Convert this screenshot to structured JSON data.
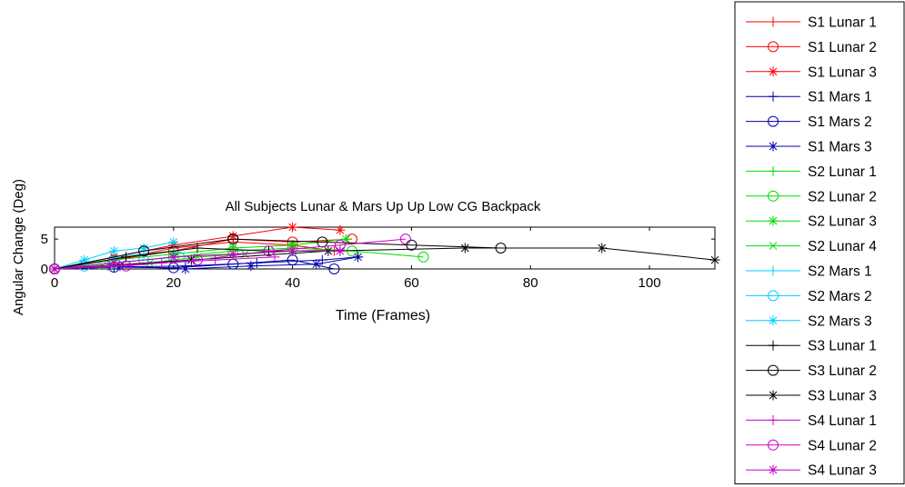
{
  "chart_data": {
    "type": "line",
    "title": "All Subjects Lunar & Mars Up Up Low CG Backpack",
    "xlabel": "Time (Frames)",
    "ylabel": "Angular Change (Deg)",
    "xlim": [
      0,
      111
    ],
    "ylim": [
      0,
      7
    ],
    "xticks": [
      0,
      20,
      40,
      60,
      80,
      100
    ],
    "yticks": [
      0,
      5
    ],
    "grid": false,
    "legend_position": "outside-right",
    "series": [
      {
        "name": "S1 Lunar 1",
        "color": "#ff0000",
        "marker": "plus",
        "x": [
          0,
          10,
          20,
          30,
          40,
          47
        ],
        "y": [
          0,
          1.5,
          3.5,
          4.5,
          4.0,
          3.0
        ]
      },
      {
        "name": "S1 Lunar 2",
        "color": "#ff0000",
        "marker": "circle",
        "x": [
          0,
          10,
          20,
          30,
          40,
          50
        ],
        "y": [
          0,
          1.5,
          3.0,
          5.0,
          4.5,
          5.0
        ]
      },
      {
        "name": "S1 Lunar 3",
        "color": "#ff0000",
        "marker": "star",
        "x": [
          0,
          10,
          20,
          30,
          40,
          48
        ],
        "y": [
          0,
          2.0,
          4.0,
          5.5,
          7.0,
          6.5
        ]
      },
      {
        "name": "S1 Mars 1",
        "color": "#0000aa",
        "marker": "plus",
        "x": [
          0,
          10,
          22,
          34,
          45,
          51
        ],
        "y": [
          0,
          0.3,
          0.5,
          1.0,
          1.5,
          2.0
        ]
      },
      {
        "name": "S1 Mars 2",
        "color": "#0000aa",
        "marker": "circle",
        "x": [
          0,
          10,
          20,
          30,
          40,
          47
        ],
        "y": [
          0,
          0.3,
          0.2,
          0.8,
          1.5,
          0.0
        ]
      },
      {
        "name": "S1 Mars 3",
        "color": "#0000aa",
        "marker": "star",
        "x": [
          0,
          11,
          22,
          33,
          44,
          51
        ],
        "y": [
          0,
          0.5,
          0.0,
          0.5,
          0.8,
          2.0
        ]
      },
      {
        "name": "S2 Lunar 1",
        "color": "#00dd00",
        "marker": "plus",
        "x": [
          0,
          10,
          20,
          30,
          40,
          48
        ],
        "y": [
          0,
          1.0,
          2.0,
          2.5,
          3.0,
          3.2
        ]
      },
      {
        "name": "S2 Lunar 2",
        "color": "#00dd00",
        "marker": "circle",
        "x": [
          0,
          10,
          20,
          30,
          40,
          50,
          62
        ],
        "y": [
          0,
          1.0,
          2.0,
          3.0,
          3.5,
          3.0,
          2.0
        ]
      },
      {
        "name": "S2 Lunar 3",
        "color": "#00dd00",
        "marker": "star",
        "x": [
          0,
          10,
          20,
          30,
          40,
          49
        ],
        "y": [
          0,
          1.5,
          2.5,
          3.5,
          4.0,
          5.0
        ]
      },
      {
        "name": "S2 Lunar 4",
        "color": "#00dd00",
        "marker": "x",
        "x": [
          0,
          8,
          16,
          24,
          32,
          40
        ],
        "y": [
          0,
          0.5,
          1.0,
          2.0,
          2.5,
          3.0
        ]
      },
      {
        "name": "S2 Mars 1",
        "color": "#00ccff",
        "marker": "plus",
        "x": [
          0,
          5,
          10,
          15,
          20
        ],
        "y": [
          0,
          1.0,
          2.0,
          2.5,
          3.0
        ]
      },
      {
        "name": "S2 Mars 2",
        "color": "#00ccff",
        "marker": "circle",
        "x": [
          0,
          5,
          10,
          15,
          21
        ],
        "y": [
          0,
          0.5,
          1.0,
          1.5,
          2.0
        ]
      },
      {
        "name": "S2 Mars 3",
        "color": "#00ccff",
        "marker": "star",
        "x": [
          0,
          5,
          10,
          15,
          20
        ],
        "y": [
          0,
          1.5,
          3.0,
          3.5,
          4.5
        ]
      },
      {
        "name": "S3 Lunar 1",
        "color": "#000000",
        "marker": "plus",
        "x": [
          0,
          12,
          24,
          36,
          48
        ],
        "y": [
          0,
          2.0,
          3.5,
          3.0,
          3.0
        ]
      },
      {
        "name": "S3 Lunar 2",
        "color": "#000000",
        "marker": "circle",
        "x": [
          0,
          15,
          30,
          45,
          60,
          75
        ],
        "y": [
          0,
          3.0,
          5.0,
          4.5,
          4.0,
          3.5
        ]
      },
      {
        "name": "S3 Lunar 3",
        "color": "#000000",
        "marker": "star",
        "x": [
          0,
          23,
          46,
          69,
          92,
          111
        ],
        "y": [
          0,
          1.5,
          3.0,
          3.5,
          3.5,
          1.5
        ]
      },
      {
        "name": "S4 Lunar 1",
        "color": "#cc00cc",
        "marker": "plus",
        "x": [
          0,
          9,
          18,
          27,
          37
        ],
        "y": [
          0,
          0.5,
          1.0,
          1.5,
          2.0
        ]
      },
      {
        "name": "S4 Lunar 2",
        "color": "#cc00cc",
        "marker": "circle",
        "x": [
          0,
          12,
          24,
          36,
          48,
          59
        ],
        "y": [
          0,
          0.5,
          1.5,
          3.0,
          4.0,
          5.0
        ]
      },
      {
        "name": "S4 Lunar 3",
        "color": "#cc00cc",
        "marker": "star",
        "x": [
          0,
          10,
          20,
          30,
          40,
          48
        ],
        "y": [
          0,
          1.0,
          2.0,
          2.5,
          3.0,
          3.0
        ]
      }
    ]
  }
}
